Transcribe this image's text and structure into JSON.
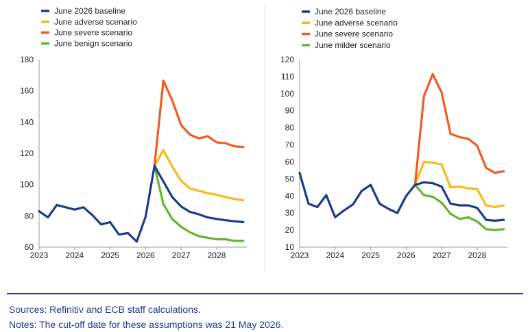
{
  "chart_data": [
    {
      "type": "line",
      "title": "",
      "xlabel": "",
      "ylabel": "",
      "x_ticks": [
        "2023",
        "2024",
        "2025",
        "2026",
        "2027",
        "2028"
      ],
      "xlim": [
        2023,
        2028.85
      ],
      "ylim": [
        60,
        180
      ],
      "y_ticks": [
        60,
        80,
        100,
        120,
        140,
        160,
        180
      ],
      "grid": false,
      "legend_position": "top-left",
      "series": [
        {
          "name": "June 2026 baseline",
          "color": "#1a3a8f",
          "x": [
            2023.0,
            2023.25,
            2023.5,
            2023.75,
            2024.0,
            2024.25,
            2024.5,
            2024.75,
            2025.0,
            2025.25,
            2025.5,
            2025.75,
            2026.0,
            2026.25,
            2026.5,
            2026.75,
            2027.0,
            2027.25,
            2027.5,
            2027.75,
            2028.0,
            2028.25,
            2028.5,
            2028.75
          ],
          "values": [
            83,
            79,
            87,
            85.5,
            84,
            85.5,
            80.5,
            74.5,
            76,
            68,
            69,
            63.5,
            79.5,
            112,
            102,
            92,
            86,
            82.5,
            81,
            79,
            78,
            77.2,
            76.5,
            76
          ]
        },
        {
          "name": "June adverse scenario",
          "color": "#fbb817",
          "x": [
            2026.25,
            2026.5,
            2026.75,
            2027.0,
            2027.25,
            2027.5,
            2027.75,
            2028.0,
            2028.25,
            2028.5,
            2028.75
          ],
          "values": [
            112,
            122,
            111.5,
            102.5,
            97.5,
            96,
            94.5,
            93.5,
            92,
            90.8,
            90
          ]
        },
        {
          "name": "June severe scenario",
          "color": "#f15a22",
          "x": [
            2026.25,
            2026.5,
            2026.75,
            2027.0,
            2027.25,
            2027.5,
            2027.75,
            2028.0,
            2028.25,
            2028.5,
            2028.75
          ],
          "values": [
            112,
            166.5,
            154,
            138,
            132,
            129.5,
            131,
            127,
            126.5,
            124.5,
            124
          ]
        },
        {
          "name": "June benign scenario",
          "color": "#65b32e",
          "x": [
            2026.25,
            2026.5,
            2026.75,
            2027.0,
            2027.25,
            2027.5,
            2027.75,
            2028.0,
            2028.25,
            2028.5,
            2028.75
          ],
          "values": [
            112,
            87.5,
            78,
            73,
            69.5,
            67,
            66,
            65,
            65,
            64,
            64
          ]
        }
      ]
    },
    {
      "type": "line",
      "title": "",
      "xlabel": "",
      "ylabel": "",
      "x_ticks": [
        "2023",
        "2024",
        "2025",
        "2026",
        "2027",
        "2028"
      ],
      "xlim": [
        2023,
        2028.85
      ],
      "ylim": [
        10,
        120
      ],
      "y_ticks": [
        10,
        20,
        30,
        40,
        50,
        60,
        70,
        80,
        90,
        100,
        110,
        120
      ],
      "grid": false,
      "legend_position": "top-left",
      "series": [
        {
          "name": "June 2026 baseline",
          "color": "#1a3a8f",
          "x": [
            2023.0,
            2023.25,
            2023.5,
            2023.75,
            2024.0,
            2024.25,
            2024.5,
            2024.75,
            2025.0,
            2025.25,
            2025.5,
            2025.75,
            2026.0,
            2026.25,
            2026.5,
            2026.75,
            2027.0,
            2027.25,
            2027.5,
            2027.75,
            2028.0,
            2028.25,
            2028.5,
            2028.75
          ],
          "values": [
            53.5,
            35.5,
            33.5,
            40.5,
            27.5,
            31.5,
            35,
            43,
            46.5,
            35.5,
            32.5,
            30,
            40,
            46.5,
            48,
            47.5,
            45.5,
            35.5,
            34.5,
            34.5,
            33,
            26,
            25.5,
            26
          ]
        },
        {
          "name": "June adverse scenario",
          "color": "#fbb817",
          "x": [
            2026.25,
            2026.5,
            2026.75,
            2027.0,
            2027.25,
            2027.5,
            2027.75,
            2028.0,
            2028.25,
            2028.5,
            2028.75
          ],
          "values": [
            46.5,
            60,
            59.5,
            58.5,
            45,
            45.5,
            44.5,
            44,
            34.5,
            33.5,
            34.5
          ]
        },
        {
          "name": "June severe scenario",
          "color": "#f15a22",
          "x": [
            2026.25,
            2026.5,
            2026.75,
            2027.0,
            2027.25,
            2027.5,
            2027.75,
            2028.0,
            2028.25,
            2028.5,
            2028.75
          ],
          "values": [
            46.5,
            98.5,
            111.5,
            100.5,
            76.5,
            74.5,
            73.5,
            69.5,
            56.5,
            53.5,
            54.5
          ]
        },
        {
          "name": "June milder scenario",
          "color": "#65b32e",
          "x": [
            2026.25,
            2026.5,
            2026.75,
            2027.0,
            2027.25,
            2027.5,
            2027.75,
            2028.0,
            2028.25,
            2028.5,
            2028.75
          ],
          "values": [
            46.5,
            40.5,
            39.5,
            36,
            29.5,
            26.5,
            27.5,
            25,
            20.5,
            20,
            20.5
          ]
        }
      ]
    }
  ],
  "footer": {
    "sources": "Sources: Refinitiv and ECB staff calculations.",
    "notes": "Notes: The cut-off date for these assumptions was 21 May 2026."
  }
}
